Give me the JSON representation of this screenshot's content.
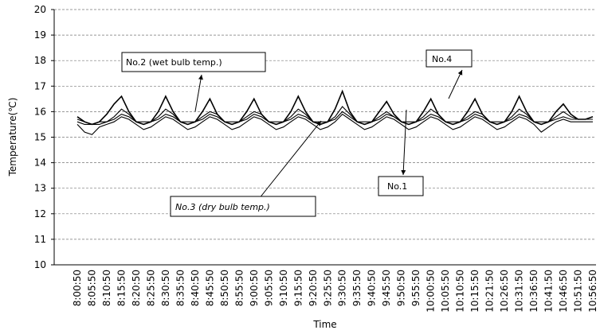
{
  "chart_data": {
    "type": "line",
    "y_label": "Temperature(℃)",
    "x_label": "Time",
    "categories": [
      "8:00:50",
      null,
      "8:05:50",
      null,
      "8:10:50",
      null,
      "8:15:50",
      null,
      "8:20:50",
      null,
      "8:25:50",
      null,
      "8:30:50",
      null,
      "8:35:50",
      null,
      "8:40:50",
      null,
      "8:45:50",
      null,
      "8:50:50",
      null,
      "8:55:50",
      null,
      "9:00:50",
      null,
      "9:05:50",
      null,
      "9:10:50",
      null,
      "9:15:50",
      null,
      "9:20:50",
      null,
      "9:25:50",
      null,
      "9:30:50",
      null,
      "9:35:50",
      null,
      "9:40:50",
      null,
      "9:45:50",
      null,
      "9:50:50",
      null,
      "9:55:50",
      null,
      "10:00:50",
      null,
      "10:05:50",
      null,
      "10:10:50",
      null,
      "10:15:50",
      null,
      "10:21:50",
      null,
      "10:26:50",
      null,
      "10:31:50",
      null,
      "10:36:50",
      null,
      "10:41:50",
      null,
      "10:46:50",
      null,
      "10:51:50",
      null,
      "10:56:50"
    ],
    "series": [
      {
        "name": "No.1",
        "color": "#000000",
        "values": [
          15.7,
          15.6,
          15.5,
          15.5,
          15.6,
          15.8,
          16.1,
          15.9,
          15.6,
          15.5,
          15.6,
          15.8,
          16.1,
          15.9,
          15.6,
          15.5,
          15.6,
          15.8,
          16.0,
          15.9,
          15.6,
          15.5,
          15.6,
          15.8,
          16.0,
          15.9,
          15.6,
          15.5,
          15.6,
          15.8,
          16.1,
          15.9,
          15.6,
          15.5,
          15.6,
          15.8,
          16.2,
          15.9,
          15.6,
          15.5,
          15.6,
          15.8,
          16.0,
          15.8,
          15.6,
          15.5,
          15.6,
          15.8,
          16.1,
          15.9,
          15.6,
          15.5,
          15.6,
          15.8,
          16.0,
          15.9,
          15.6,
          15.5,
          15.6,
          15.8,
          16.1,
          15.9,
          15.6,
          15.5,
          15.6,
          15.8,
          16.0,
          15.8,
          15.7,
          15.7,
          15.7
        ]
      },
      {
        "name": "No.2 (wet bulb temp.)",
        "color": "#000000",
        "values": [
          15.6,
          15.5,
          15.5,
          15.6,
          15.6,
          15.7,
          15.9,
          15.8,
          15.6,
          15.6,
          15.6,
          15.7,
          15.9,
          15.8,
          15.6,
          15.6,
          15.6,
          15.7,
          15.9,
          15.8,
          15.6,
          15.6,
          15.6,
          15.7,
          15.9,
          15.8,
          15.6,
          15.6,
          15.6,
          15.7,
          15.9,
          15.8,
          15.6,
          15.6,
          15.6,
          15.7,
          16.0,
          15.8,
          15.6,
          15.6,
          15.6,
          15.7,
          15.9,
          15.8,
          15.6,
          15.6,
          15.6,
          15.7,
          15.9,
          15.8,
          15.6,
          15.6,
          15.6,
          15.7,
          15.9,
          15.8,
          15.6,
          15.6,
          15.6,
          15.7,
          15.9,
          15.8,
          15.6,
          15.6,
          15.6,
          15.7,
          15.8,
          15.7,
          15.7,
          15.7,
          15.7
        ]
      },
      {
        "name": "No.3 (dry bulb temp.)",
        "color": "#000000",
        "values": [
          15.5,
          15.2,
          15.1,
          15.4,
          15.5,
          15.6,
          15.8,
          15.7,
          15.5,
          15.3,
          15.4,
          15.6,
          15.8,
          15.7,
          15.5,
          15.3,
          15.4,
          15.6,
          15.8,
          15.7,
          15.5,
          15.3,
          15.4,
          15.6,
          15.8,
          15.7,
          15.5,
          15.3,
          15.4,
          15.6,
          15.8,
          15.7,
          15.5,
          15.3,
          15.4,
          15.6,
          15.9,
          15.7,
          15.5,
          15.3,
          15.4,
          15.6,
          15.8,
          15.7,
          15.5,
          15.3,
          15.4,
          15.6,
          15.8,
          15.7,
          15.5,
          15.3,
          15.4,
          15.6,
          15.8,
          15.7,
          15.5,
          15.3,
          15.4,
          15.6,
          15.8,
          15.7,
          15.5,
          15.2,
          15.4,
          15.6,
          15.7,
          15.6,
          15.6,
          15.6,
          15.6
        ]
      },
      {
        "name": "No.4",
        "color": "#000000",
        "values": [
          15.8,
          15.6,
          15.5,
          15.6,
          15.9,
          16.3,
          16.6,
          16.0,
          15.6,
          15.5,
          15.6,
          16.0,
          16.6,
          16.0,
          15.6,
          15.5,
          15.6,
          16.0,
          16.5,
          15.9,
          15.6,
          15.5,
          15.6,
          16.0,
          16.5,
          15.9,
          15.6,
          15.5,
          15.6,
          16.0,
          16.6,
          16.0,
          15.6,
          15.5,
          15.6,
          16.1,
          16.8,
          16.0,
          15.6,
          15.5,
          15.6,
          16.0,
          16.4,
          15.9,
          15.6,
          15.5,
          15.6,
          16.0,
          16.5,
          15.9,
          15.6,
          15.5,
          15.6,
          16.0,
          16.5,
          15.9,
          15.6,
          15.5,
          15.6,
          16.0,
          16.6,
          16.0,
          15.6,
          15.5,
          15.6,
          16.0,
          16.3,
          15.9,
          15.7,
          15.7,
          15.8
        ]
      }
    ],
    "ylim": [
      10,
      20
    ],
    "yticks": [
      10,
      11,
      12,
      13,
      14,
      15,
      16,
      17,
      18,
      19,
      20
    ],
    "grid": true
  }
}
